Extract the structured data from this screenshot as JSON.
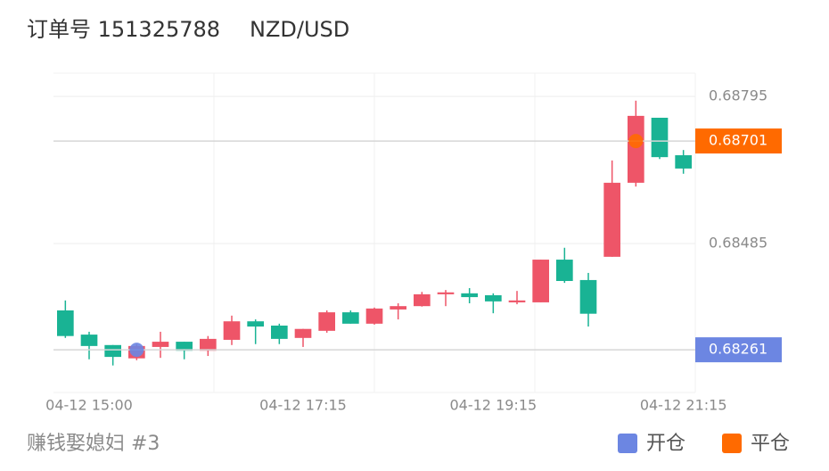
{
  "chart_data": {
    "type": "candlestick",
    "title": "订单号 151325788",
    "subtitle": "NZD/USD",
    "footer": "赚钱娶媳妇 #3",
    "categories": [
      null,
      "04-12 15:00",
      null,
      null,
      null,
      null,
      null,
      null,
      null,
      null,
      "04-12 17:15",
      null,
      null,
      null,
      null,
      null,
      null,
      null,
      "04-12 19:15",
      null,
      null,
      null,
      null,
      null,
      null,
      null,
      "04-12 21:15"
    ],
    "open": [
      0.68344,
      0.68293,
      0.68271,
      0.68243,
      0.68267,
      0.68278,
      0.68259,
      0.68282,
      0.68321,
      0.68312,
      0.68286,
      0.68301,
      0.6834,
      0.68316,
      0.68346,
      0.68353,
      0.68378,
      0.6838,
      0.68376,
      0.68361,
      0.68361,
      0.68451,
      0.68408,
      0.68457,
      0.68613,
      0.6875,
      0.68671
    ],
    "high": [
      0.68365,
      0.68299,
      0.68271,
      0.68273,
      0.68299,
      0.68278,
      0.6829,
      0.68333,
      0.68325,
      0.68316,
      0.68305,
      0.68344,
      0.68344,
      0.6835,
      0.68359,
      0.68383,
      0.68387,
      0.68391,
      0.6838,
      0.68385,
      0.68451,
      0.68476,
      0.68423,
      0.6866,
      0.68786,
      0.6875,
      0.68682
    ],
    "low": [
      0.68286,
      0.68241,
      0.68228,
      0.68239,
      0.68244,
      0.68241,
      0.68248,
      0.68271,
      0.68273,
      0.68273,
      0.68267,
      0.68297,
      0.68316,
      0.68314,
      0.68325,
      0.68352,
      0.68353,
      0.68359,
      0.68338,
      0.68357,
      0.68361,
      0.68402,
      0.6831,
      0.68457,
      0.68605,
      0.68663,
      0.68632
    ],
    "close": [
      0.6829,
      0.68269,
      0.68246,
      0.68269,
      0.68278,
      0.68259,
      0.68284,
      0.68321,
      0.6831,
      0.68284,
      0.68305,
      0.6834,
      0.68316,
      0.68348,
      0.68353,
      0.68378,
      0.68382,
      0.68372,
      0.68363,
      0.68365,
      0.68451,
      0.68406,
      0.68337,
      0.68613,
      0.68754,
      0.68667,
      0.68643
    ],
    "up_color": "#ee5568",
    "down_color": "#19b394",
    "series": [
      {
        "name": "开仓",
        "color": "#6c86e2",
        "values": [
          null,
          null,
          null,
          0.68261,
          null,
          null,
          null,
          null,
          null,
          null,
          null,
          null,
          null,
          null,
          null,
          null,
          null,
          null,
          null,
          null,
          null,
          null,
          null,
          null,
          null,
          null,
          null
        ]
      },
      {
        "name": "平仓",
        "color": "#ff6a00",
        "values": [
          null,
          null,
          null,
          null,
          null,
          null,
          null,
          null,
          null,
          null,
          null,
          null,
          null,
          null,
          null,
          null,
          null,
          null,
          null,
          null,
          null,
          null,
          null,
          null,
          0.68701,
          null,
          null
        ]
      }
    ],
    "ylim": [
      0.68171,
      0.68844
    ],
    "yticks": [
      0.68485,
      0.68795
    ],
    "grid": true
  }
}
